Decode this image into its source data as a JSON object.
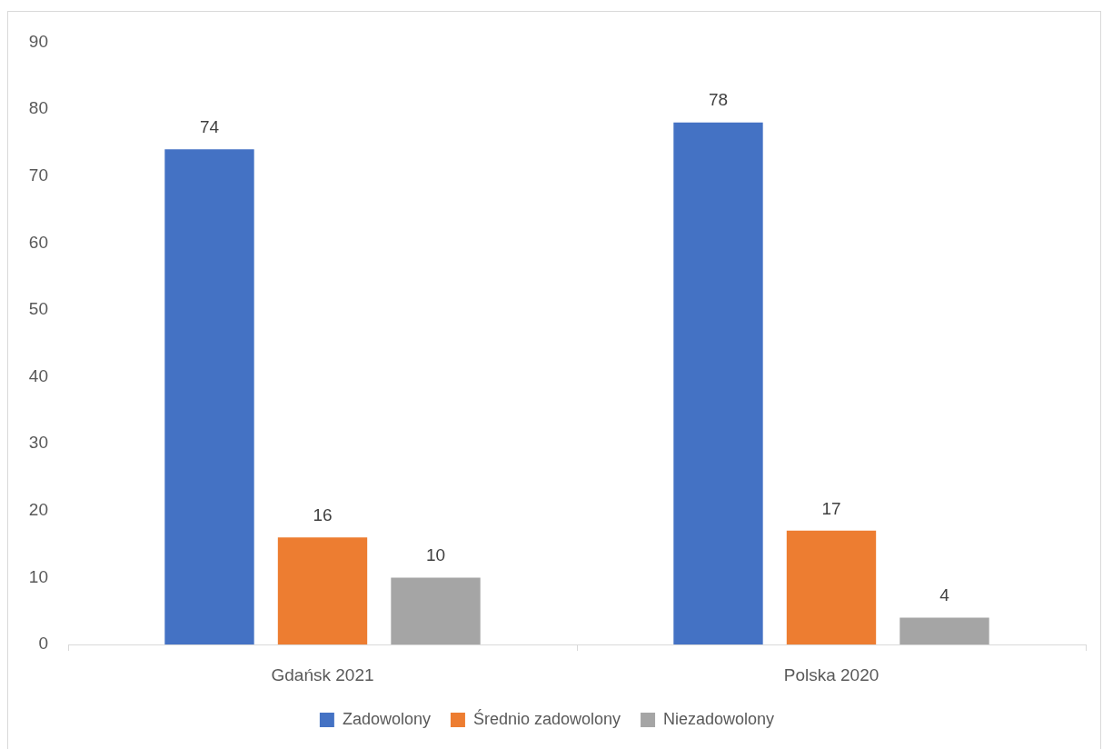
{
  "chart_data": {
    "type": "bar",
    "categories": [
      "Gdańsk 2021",
      "Polska 2020"
    ],
    "series": [
      {
        "name": "Zadowolony",
        "color": "#4472c4",
        "values": [
          74,
          78
        ]
      },
      {
        "name": "Średnio zadowolony",
        "color": "#ed7d31",
        "values": [
          16,
          17
        ]
      },
      {
        "name": "Niezadowolony",
        "color": "#a5a5a5",
        "values": [
          10,
          4
        ]
      }
    ],
    "ylim": [
      0,
      90
    ],
    "yticks": [
      0,
      10,
      20,
      30,
      40,
      50,
      60,
      70,
      80,
      90
    ],
    "grid": false,
    "legend": "bottom",
    "data_labels": true
  }
}
